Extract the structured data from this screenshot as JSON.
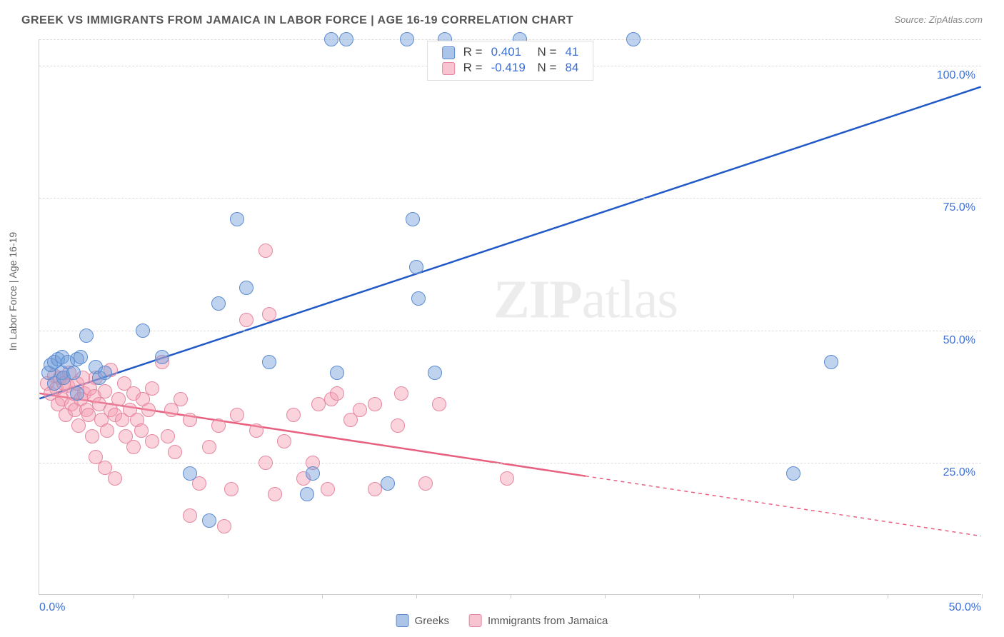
{
  "title": "GREEK VS IMMIGRANTS FROM JAMAICA IN LABOR FORCE | AGE 16-19 CORRELATION CHART",
  "source": "Source: ZipAtlas.com",
  "y_axis_label": "In Labor Force | Age 16-19",
  "watermark_bold": "ZIP",
  "watermark_rest": "atlas",
  "chart": {
    "type": "scatter",
    "xlim": [
      0,
      50
    ],
    "ylim": [
      0,
      105
    ],
    "x_ticks_label_left": "0.0%",
    "x_ticks_label_right": "50.0%",
    "x_tick_positions": [
      5,
      10,
      15,
      20,
      25,
      30,
      35,
      40,
      45,
      50
    ],
    "y_gridlines": [
      25,
      50,
      75,
      100,
      105
    ],
    "y_tick_labels": {
      "25": "25.0%",
      "50": "50.0%",
      "75": "75.0%",
      "100": "100.0%"
    },
    "background_color": "#ffffff",
    "grid_color": "#dddddd",
    "axis_color": "#cccccc",
    "marker_radius": 10,
    "series": {
      "blue": {
        "name": "Greeks",
        "color_fill": "rgba(114,158,217,0.45)",
        "color_stroke": "#5b8bd0",
        "line_color": "#2159c7",
        "R": "0.401",
        "N": "41",
        "regression": {
          "x1": 0,
          "y1": 37,
          "x2": 50,
          "y2": 96,
          "solid_until_x": 50
        },
        "points": [
          [
            0.5,
            42
          ],
          [
            0.6,
            43.5
          ],
          [
            0.8,
            40
          ],
          [
            0.8,
            44
          ],
          [
            1.0,
            44.5
          ],
          [
            1.2,
            42
          ],
          [
            1.2,
            45
          ],
          [
            1.3,
            41
          ],
          [
            1.5,
            44
          ],
          [
            1.8,
            42
          ],
          [
            2.0,
            44.5
          ],
          [
            2.0,
            38
          ],
          [
            2.2,
            45
          ],
          [
            2.5,
            49
          ],
          [
            3.0,
            43
          ],
          [
            3.2,
            41
          ],
          [
            3.5,
            42
          ],
          [
            5.5,
            50
          ],
          [
            6.5,
            45
          ],
          [
            8.0,
            23
          ],
          [
            9.0,
            14
          ],
          [
            9.5,
            55
          ],
          [
            10.5,
            71
          ],
          [
            11.0,
            58
          ],
          [
            12.2,
            44
          ],
          [
            14.2,
            19
          ],
          [
            14.5,
            23
          ],
          [
            15.5,
            105
          ],
          [
            16.3,
            105
          ],
          [
            15.8,
            42
          ],
          [
            18.5,
            21
          ],
          [
            19.5,
            105
          ],
          [
            19.8,
            71
          ],
          [
            20.0,
            62
          ],
          [
            20.1,
            56
          ],
          [
            21.0,
            42
          ],
          [
            21.5,
            105
          ],
          [
            25.5,
            105
          ],
          [
            31.5,
            105
          ],
          [
            40.0,
            23
          ],
          [
            42.0,
            44
          ]
        ]
      },
      "pink": {
        "name": "Immigrants from Jamaica",
        "color_fill": "rgba(243,157,178,0.45)",
        "color_stroke": "#e587a0",
        "line_color": "#e8607f",
        "R": "-0.419",
        "N": "84",
        "regression": {
          "x1": 0,
          "y1": 38,
          "x2": 50,
          "y2": 11,
          "solid_until_x": 29
        },
        "points": [
          [
            0.4,
            40
          ],
          [
            0.6,
            38
          ],
          [
            0.8,
            41.5
          ],
          [
            0.9,
            39
          ],
          [
            1.0,
            36
          ],
          [
            1.1,
            41
          ],
          [
            1.2,
            37
          ],
          [
            1.3,
            40
          ],
          [
            1.4,
            34
          ],
          [
            1.5,
            39.5
          ],
          [
            1.6,
            42
          ],
          [
            1.7,
            36
          ],
          [
            1.8,
            38
          ],
          [
            1.9,
            35
          ],
          [
            2.0,
            40
          ],
          [
            2.1,
            32
          ],
          [
            2.2,
            37
          ],
          [
            2.3,
            41
          ],
          [
            2.4,
            38
          ],
          [
            2.5,
            35
          ],
          [
            2.6,
            34
          ],
          [
            2.7,
            39
          ],
          [
            2.8,
            30
          ],
          [
            2.9,
            37.5
          ],
          [
            3.0,
            41
          ],
          [
            3.0,
            26
          ],
          [
            3.2,
            36
          ],
          [
            3.3,
            33
          ],
          [
            3.5,
            38.5
          ],
          [
            3.5,
            24
          ],
          [
            3.6,
            31
          ],
          [
            3.8,
            35
          ],
          [
            3.8,
            42.5
          ],
          [
            4.0,
            34
          ],
          [
            4.0,
            22
          ],
          [
            4.2,
            37
          ],
          [
            4.4,
            33
          ],
          [
            4.5,
            40
          ],
          [
            4.6,
            30
          ],
          [
            4.8,
            35
          ],
          [
            5.0,
            28
          ],
          [
            5.0,
            38
          ],
          [
            5.2,
            33
          ],
          [
            5.4,
            31
          ],
          [
            5.5,
            37
          ],
          [
            5.8,
            35
          ],
          [
            6.0,
            29
          ],
          [
            6.0,
            39
          ],
          [
            6.5,
            44
          ],
          [
            6.8,
            30
          ],
          [
            7.0,
            35
          ],
          [
            7.2,
            27
          ],
          [
            7.5,
            37
          ],
          [
            8.0,
            33
          ],
          [
            8.0,
            15
          ],
          [
            8.5,
            21
          ],
          [
            9.0,
            28
          ],
          [
            9.5,
            32
          ],
          [
            9.8,
            13
          ],
          [
            10.2,
            20
          ],
          [
            10.5,
            34
          ],
          [
            11.0,
            52
          ],
          [
            11.5,
            31
          ],
          [
            12.0,
            25
          ],
          [
            12.0,
            65
          ],
          [
            12.2,
            53
          ],
          [
            12.5,
            19
          ],
          [
            13.0,
            29
          ],
          [
            13.5,
            34
          ],
          [
            14.0,
            22
          ],
          [
            14.5,
            25
          ],
          [
            14.8,
            36
          ],
          [
            15.3,
            20
          ],
          [
            15.5,
            37
          ],
          [
            15.8,
            38
          ],
          [
            16.5,
            33
          ],
          [
            17.0,
            35
          ],
          [
            17.8,
            20
          ],
          [
            17.8,
            36
          ],
          [
            19.0,
            32
          ],
          [
            19.2,
            38
          ],
          [
            20.5,
            21
          ],
          [
            21.2,
            36
          ],
          [
            24.8,
            22
          ]
        ]
      }
    }
  },
  "legend_bottom": {
    "items": [
      {
        "color": "blue",
        "label": "Greeks"
      },
      {
        "color": "pink",
        "label": "Immigrants from Jamaica"
      }
    ]
  }
}
